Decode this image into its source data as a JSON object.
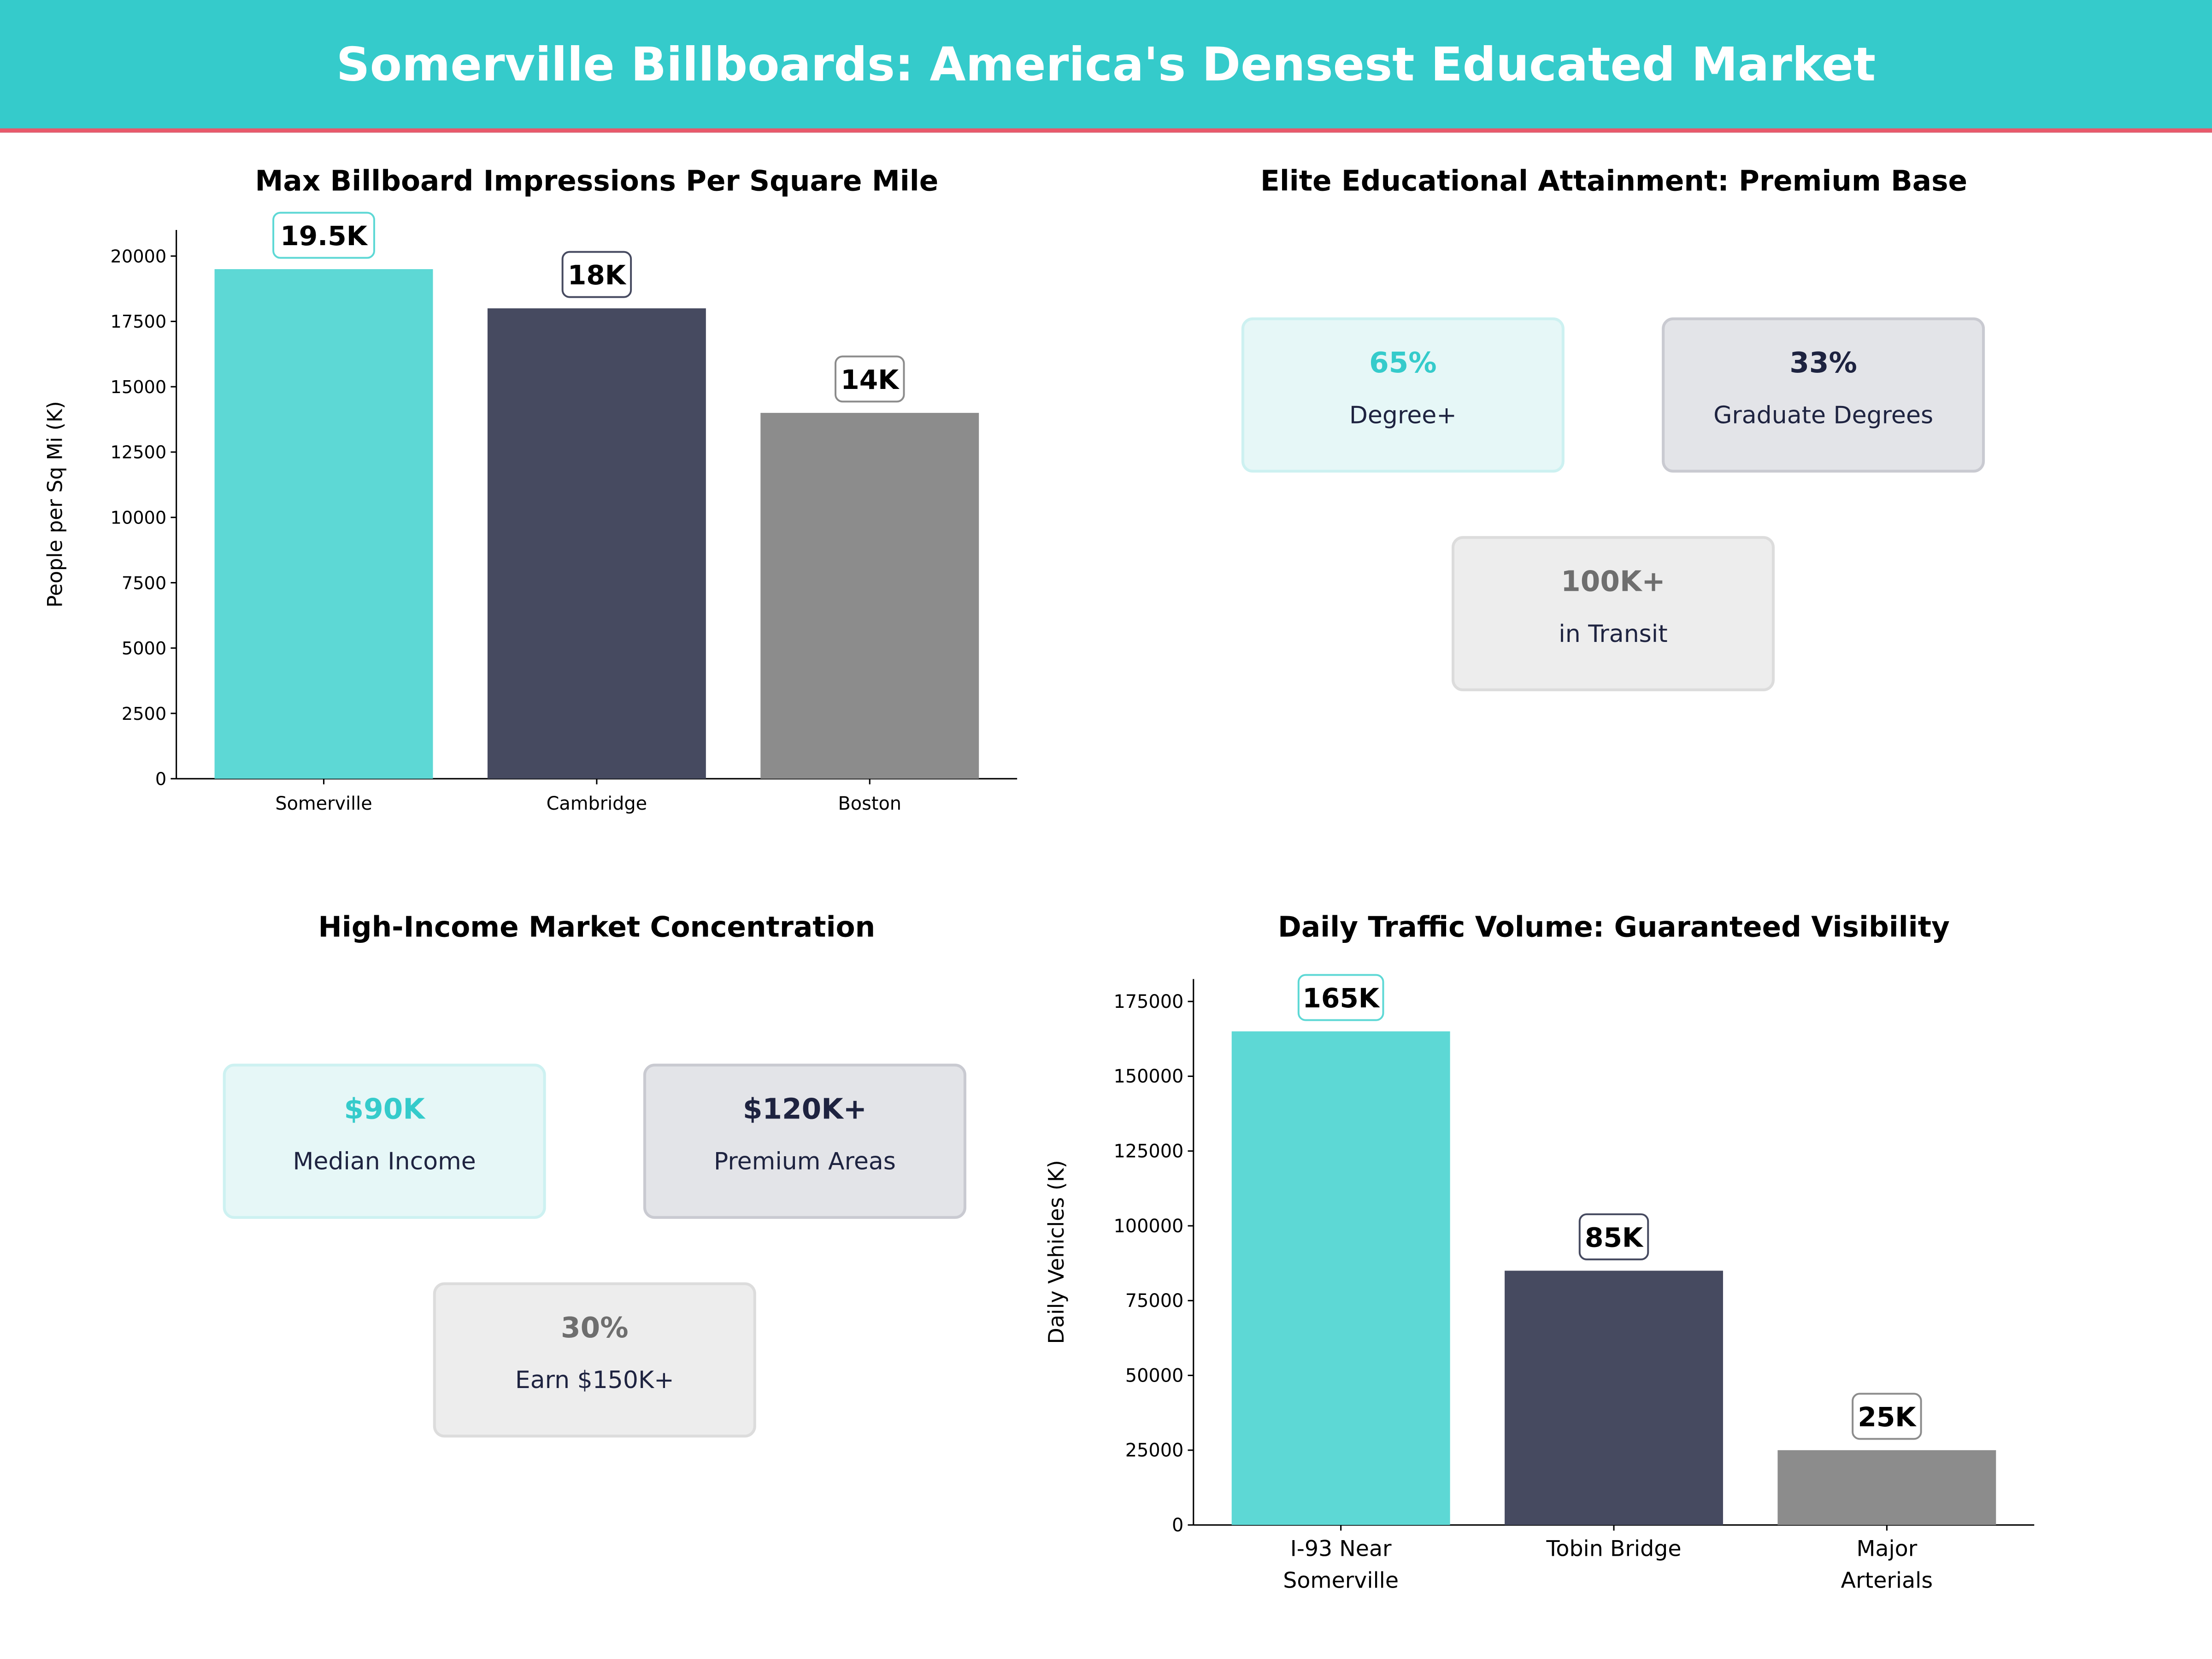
{
  "header": {
    "title": "Somerville Billboards: America's Densest Educated Market"
  },
  "colors": {
    "teal": "#35CBCB",
    "teal_bar": "#5DD8D5",
    "navy": "#464A60",
    "grey": "#8C8C8C",
    "accent_line": "#E8596B",
    "navy_text": "#1E2340",
    "grey_text": "#6E6E6E"
  },
  "chart_data": [
    {
      "type": "bar",
      "title": "Max Billboard Impressions Per Square Mile",
      "xlabel": "",
      "ylabel": "People per Sq Mi (K)",
      "categories": [
        "Somerville",
        "Cambridge",
        "Boston"
      ],
      "values": [
        19500,
        18000,
        14000
      ],
      "data_labels": [
        "19.5K",
        "18K",
        "14K"
      ],
      "ylim": [
        0,
        21000
      ],
      "yticks": [
        0,
        2500,
        5000,
        7500,
        10000,
        12500,
        15000,
        17500,
        20000
      ],
      "grid": false
    },
    {
      "type": "bar",
      "title": "Daily Traffic Volume: Guaranteed Visibility",
      "xlabel": "",
      "ylabel": "Daily Vehicles (K)",
      "categories": [
        "I-93 Near\nSomerville",
        "Tobin Bridge",
        "Major\nArterials"
      ],
      "values": [
        165000,
        85000,
        25000
      ],
      "data_labels": [
        "165K",
        "85K",
        "25K"
      ],
      "ylim": [
        0,
        182500
      ],
      "yticks": [
        0,
        25000,
        50000,
        75000,
        100000,
        125000,
        150000,
        175000
      ],
      "grid": false
    }
  ],
  "education": {
    "title": "Elite Educational Attainment: Premium Base",
    "cards": [
      {
        "value": "65%",
        "label": "Degree+"
      },
      {
        "value": "33%",
        "label": "Graduate Degrees"
      },
      {
        "value": "100K+",
        "label": "in Transit"
      }
    ]
  },
  "income": {
    "title": "High-Income Market Concentration",
    "cards": [
      {
        "value": "$90K",
        "label": "Median Income"
      },
      {
        "value": "$120K+",
        "label": "Premium Areas"
      },
      {
        "value": "30%",
        "label": "Earn $150K+"
      }
    ]
  }
}
